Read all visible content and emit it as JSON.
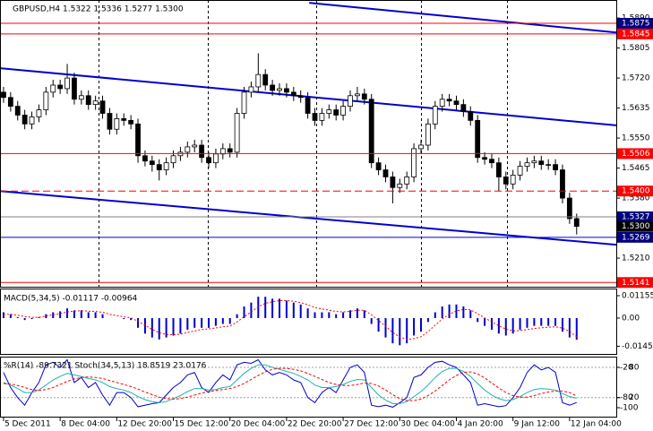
{
  "chart_data": [
    {
      "type": "candlestick",
      "title": "GBPUSD,H4 1.5322 1.5336 1.5277 1.5300",
      "categories": [
        "5 Dec 2011",
        null,
        null,
        null,
        null,
        null,
        null,
        null,
        "8 Dec 04:00",
        null,
        null,
        null,
        null,
        null,
        null,
        null,
        "12 Dec 20:00",
        null,
        null,
        null,
        null,
        null,
        null,
        null,
        "15 Dec 12:00",
        null,
        null,
        null,
        null,
        null,
        null,
        null,
        "20 Dec 04:00",
        null,
        null,
        null,
        null,
        null,
        null,
        null,
        "22 Dec 20:00",
        null,
        null,
        null,
        null,
        null,
        null,
        null,
        "27 Dec 12:00",
        null,
        null,
        null,
        null,
        null,
        null,
        null,
        "30 Dec 04:00",
        null,
        null,
        null,
        null,
        null,
        null,
        null,
        "4 Jan 20:00",
        null,
        null,
        null,
        null,
        null,
        null,
        null,
        "9 Jan 12:00",
        null,
        null,
        null,
        null,
        null,
        null,
        null,
        "12 Jan 04:00",
        null
      ],
      "open": [
        1.568,
        1.5665,
        1.564,
        1.5615,
        1.559,
        1.561,
        1.563,
        1.568,
        1.57,
        1.569,
        1.572,
        1.566,
        1.567,
        1.5645,
        1.5655,
        1.562,
        1.5575,
        1.5605,
        1.56,
        1.559,
        1.55,
        1.5485,
        1.5475,
        1.546,
        1.548,
        1.55,
        1.551,
        1.5525,
        1.553,
        1.5495,
        1.548,
        1.5505,
        1.552,
        1.551,
        1.562,
        1.568,
        1.5695,
        1.573,
        1.57,
        1.5685,
        1.569,
        1.568,
        1.567,
        1.5665,
        1.562,
        1.56,
        1.562,
        1.563,
        1.5615,
        1.564,
        1.567,
        1.5675,
        1.566,
        1.548,
        1.546,
        1.544,
        1.541,
        1.542,
        1.544,
        1.552,
        1.553,
        1.559,
        1.564,
        1.566,
        1.5655,
        1.5645,
        1.5625,
        1.56,
        1.5495,
        1.549,
        1.548,
        1.544,
        1.542,
        1.5445,
        1.547,
        1.548,
        1.5485,
        1.5475,
        1.5475,
        1.546,
        1.538,
        1.5322
      ],
      "high": [
        1.5695,
        1.568,
        1.5655,
        1.563,
        1.5625,
        1.5645,
        1.5695,
        1.5715,
        1.5715,
        1.576,
        1.5735,
        1.5685,
        1.5685,
        1.567,
        1.567,
        1.5635,
        1.562,
        1.562,
        1.5615,
        1.5605,
        1.5515,
        1.55,
        1.549,
        1.5495,
        1.5515,
        1.5525,
        1.554,
        1.5545,
        1.5545,
        1.551,
        1.552,
        1.5535,
        1.5535,
        1.5635,
        1.5695,
        1.571,
        1.579,
        1.5745,
        1.5715,
        1.5705,
        1.5705,
        1.5695,
        1.5685,
        1.568,
        1.5635,
        1.5635,
        1.5645,
        1.5645,
        1.5655,
        1.5685,
        1.5695,
        1.569,
        1.5675,
        1.5495,
        1.5475,
        1.5455,
        1.5435,
        1.5455,
        1.5535,
        1.5545,
        1.5605,
        1.5655,
        1.5675,
        1.5675,
        1.567,
        1.566,
        1.564,
        1.5615,
        1.551,
        1.5505,
        1.5495,
        1.5455,
        1.546,
        1.5485,
        1.5495,
        1.55,
        1.55,
        1.549,
        1.549,
        1.5475,
        1.5395,
        1.5336
      ],
      "low": [
        1.565,
        1.5625,
        1.56,
        1.5575,
        1.5575,
        1.5595,
        1.5615,
        1.5665,
        1.5675,
        1.5675,
        1.5645,
        1.5645,
        1.563,
        1.563,
        1.5605,
        1.556,
        1.556,
        1.5585,
        1.5575,
        1.548,
        1.547,
        1.5455,
        1.543,
        1.5445,
        1.5465,
        1.5485,
        1.5495,
        1.551,
        1.548,
        1.5465,
        1.5465,
        1.549,
        1.5495,
        1.5495,
        1.5605,
        1.5665,
        1.568,
        1.5685,
        1.567,
        1.567,
        1.5665,
        1.5655,
        1.565,
        1.5605,
        1.5585,
        1.5585,
        1.5605,
        1.56,
        1.56,
        1.5625,
        1.5655,
        1.5645,
        1.5465,
        1.5445,
        1.5425,
        1.5365,
        1.5395,
        1.5405,
        1.5425,
        1.5505,
        1.5515,
        1.5575,
        1.5625,
        1.564,
        1.563,
        1.561,
        1.5585,
        1.548,
        1.5475,
        1.5465,
        1.54,
        1.5405,
        1.5405,
        1.543,
        1.5455,
        1.5465,
        1.546,
        1.546,
        1.5445,
        1.5365,
        1.5307,
        1.5277
      ],
      "close": [
        1.5665,
        1.564,
        1.5615,
        1.559,
        1.561,
        1.563,
        1.568,
        1.57,
        1.569,
        1.572,
        1.566,
        1.567,
        1.5645,
        1.5655,
        1.562,
        1.5575,
        1.5605,
        1.56,
        1.559,
        1.55,
        1.5485,
        1.5475,
        1.546,
        1.548,
        1.55,
        1.551,
        1.5525,
        1.553,
        1.5495,
        1.548,
        1.5505,
        1.552,
        1.551,
        1.562,
        1.568,
        1.5695,
        1.573,
        1.57,
        1.5685,
        1.569,
        1.568,
        1.567,
        1.5665,
        1.562,
        1.56,
        1.562,
        1.563,
        1.5615,
        1.564,
        1.567,
        1.5675,
        1.566,
        1.548,
        1.546,
        1.544,
        1.541,
        1.542,
        1.544,
        1.552,
        1.553,
        1.559,
        1.564,
        1.566,
        1.5655,
        1.5645,
        1.5625,
        1.56,
        1.5495,
        1.549,
        1.548,
        1.544,
        1.542,
        1.5445,
        1.547,
        1.548,
        1.5485,
        1.5475,
        1.5475,
        1.546,
        1.538,
        1.5322,
        1.53
      ],
      "color": "#000000",
      "xlim": [
        -0.5,
        86.6
      ],
      "ylim": [
        1.5129,
        1.5941
      ],
      "yticks": [
        {
          "value": 1.589,
          "label": "1.5890"
        },
        1.5805,
        {
          "value": 1.572,
          "label": "1.5720"
        },
        1.5635,
        {
          "value": 1.555,
          "label": "1.5550"
        },
        1.5465,
        {
          "value": 1.538,
          "label": "1.5380"
        },
        {
          "value": 1.521,
          "label": "1.5210"
        }
      ],
      "levels": [
        {
          "value": 1.5875,
          "label": "1.5875",
          "color": "#ff0000",
          "label_color": "#000080",
          "line": true,
          "dash": false
        },
        {
          "value": 1.5845,
          "label": "1.5845",
          "color": "#ff0000",
          "label_color": "#ff0000",
          "line": true,
          "dash": false
        },
        {
          "value": 1.5506,
          "label": "1.5506",
          "color": "#ff0000",
          "label_color": "#ff0000",
          "line": true,
          "dash": false
        },
        {
          "value": 1.54,
          "label": "1.5400",
          "color": "#ff0000",
          "label_color": "#ff0000",
          "line": true,
          "dash": true
        },
        {
          "value": 1.5327,
          "label": "1.5327",
          "color": "#808080",
          "label_color": "#000080",
          "line": true,
          "dash": false
        },
        {
          "value": 1.53,
          "label": "1.5300",
          "color": "#000000",
          "label_color": "#000000",
          "line": false,
          "dash": false
        },
        {
          "value": 1.5269,
          "label": "1.5269",
          "color": "#0000cd",
          "label_color": "#000080",
          "line": true,
          "dash": false
        },
        {
          "value": 1.5141,
          "label": "1.5141",
          "color": "#ff0000",
          "label_color": "#ff0000",
          "line": true,
          "dash": false
        }
      ],
      "trendlines": [
        {
          "x": [
            43.2,
            86.6
          ],
          "values": [
            1.5933,
            1.5849
          ],
          "color": "#0000cd"
        },
        {
          "x": [
            -0.5,
            86.6
          ],
          "values": [
            1.5748,
            1.5586
          ],
          "color": "#0000cd"
        },
        {
          "x": [
            -0.5,
            86.6
          ],
          "values": [
            1.54,
            1.5248
          ],
          "color": "#0000cd"
        }
      ]
    },
    {
      "type": "bar",
      "title": "MACD(5,34,5) -0.01117 -0.00964",
      "ylim": [
        -0.01848,
        0.01524
      ],
      "yticks": [
        0.01155,
        {
          "value": 0,
          "label": "0.00"
        },
        -0.01451
      ],
      "series": [
        {
          "kind": "bar",
          "color": "#0000cd",
          "dash": false,
          "values": [
            0.003,
            0.002,
            0.0005,
            -0.001,
            -0.0005,
            0.0005,
            0.002,
            0.003,
            0.0035,
            0.005,
            0.004,
            0.004,
            0.003,
            0.003,
            0.002,
            0.0,
            0.0,
            -0.0005,
            -0.001,
            -0.005,
            -0.008,
            -0.01,
            -0.011,
            -0.01,
            -0.009,
            -0.008,
            -0.006,
            -0.005,
            -0.005,
            -0.005,
            -0.004,
            -0.003,
            -0.003,
            0.002,
            0.006,
            0.008,
            0.011,
            0.011,
            0.01,
            0.01,
            0.009,
            0.008,
            0.007,
            0.005,
            0.003,
            0.003,
            0.003,
            0.002,
            0.003,
            0.004,
            0.005,
            0.004,
            -0.003,
            -0.007,
            -0.01,
            -0.013,
            -0.014,
            -0.013,
            -0.009,
            -0.007,
            -0.002,
            0.003,
            0.006,
            0.007,
            0.007,
            0.006,
            0.004,
            -0.002,
            -0.004,
            -0.006,
            -0.008,
            -0.009,
            -0.008,
            -0.006,
            -0.005,
            -0.004,
            -0.004,
            -0.004,
            -0.004,
            -0.007,
            -0.01,
            -0.01117
          ]
        },
        {
          "kind": "line",
          "color": "#ff0000",
          "dash": true,
          "values": [
            0.002,
            0.002,
            0.0015,
            0.0008,
            0.0004,
            0.0004,
            0.001,
            0.0017,
            0.0023,
            0.0032,
            0.0036,
            0.0038,
            0.0036,
            0.0034,
            0.003,
            0.002,
            0.0013,
            0.0007,
            0.0001,
            -0.0016,
            -0.0037,
            -0.0058,
            -0.0076,
            -0.0084,
            -0.0086,
            -0.0083,
            -0.0074,
            -0.0066,
            -0.0059,
            -0.0056,
            -0.0051,
            -0.0045,
            -0.0041,
            -0.002,
            0.0007,
            0.0032,
            0.0058,
            0.0076,
            0.0084,
            0.009,
            0.009,
            0.0087,
            0.008,
            0.0069,
            0.0055,
            0.0047,
            0.0041,
            0.0034,
            0.0032,
            0.0035,
            0.004,
            0.004,
            0.0017,
            -0.0012,
            -0.0042,
            -0.0074,
            -0.0097,
            -0.011,
            -0.0106,
            -0.0096,
            -0.007,
            -0.0037,
            -0.0005,
            0.002,
            0.0037,
            0.0045,
            0.0043,
            0.0022,
            0.0001,
            -0.0019,
            -0.004,
            -0.0057,
            -0.0066,
            -0.0064,
            -0.0059,
            -0.0054,
            -0.005,
            -0.0047,
            -0.0045,
            -0.0052,
            -0.0069,
            -0.00964
          ]
        }
      ]
    },
    {
      "type": "line",
      "title": "%R(14) -89.7321  Stoch(34,5,13) 18.8519 23.0176",
      "ylim": [
        -17.8,
        101.3
      ],
      "yticks": [
        80,
        20
      ],
      "y2lim": [
        -117.8,
        1.3
      ],
      "y2ticks": [
        -20,
        -80,
        -100
      ],
      "grid": true,
      "series": [
        {
          "axis": "y2",
          "color": "#0000cd",
          "dash": false,
          "values": [
            -30,
            -60,
            -80,
            -95,
            -70,
            -50,
            -15,
            -10,
            -20,
            -5,
            -50,
            -40,
            -60,
            -50,
            -75,
            -95,
            -70,
            -70,
            -80,
            -98,
            -95,
            -92,
            -90,
            -75,
            -60,
            -50,
            -35,
            -30,
            -60,
            -70,
            -50,
            -35,
            -45,
            -15,
            -10,
            -12,
            -5,
            -25,
            -35,
            -30,
            -35,
            -45,
            -50,
            -80,
            -90,
            -70,
            -60,
            -70,
            -45,
            -20,
            -15,
            -30,
            -95,
            -98,
            -95,
            -99,
            -90,
            -80,
            -40,
            -35,
            -20,
            -10,
            -8,
            -15,
            -20,
            -35,
            -50,
            -95,
            -92,
            -95,
            -98,
            -96,
            -80,
            -60,
            -30,
            -15,
            -25,
            -20,
            -30,
            -90,
            -95,
            -89.7321
          ]
        },
        {
          "axis": "y",
          "color": "#20b2aa",
          "dash": false,
          "values": [
            50,
            45,
            38,
            30,
            30,
            35,
            45,
            55,
            62,
            68,
            65,
            62,
            58,
            55,
            50,
            42,
            38,
            35,
            30,
            22,
            16,
            12,
            10,
            12,
            18,
            24,
            32,
            38,
            38,
            35,
            36,
            40,
            42,
            55,
            68,
            78,
            85,
            85,
            80,
            76,
            72,
            68,
            62,
            55,
            45,
            40,
            40,
            42,
            46,
            52,
            56,
            55,
            40,
            25,
            15,
            8,
            8,
            12,
            22,
            32,
            45,
            60,
            72,
            78,
            78,
            72,
            62,
            48,
            35,
            25,
            18,
            14,
            16,
            22,
            30,
            36,
            38,
            37,
            35,
            28,
            22,
            18.8519
          ]
        },
        {
          "axis": "y",
          "color": "#ff0000",
          "dash": true,
          "values": [
            48,
            47,
            44,
            40,
            36,
            34,
            36,
            40,
            46,
            52,
            57,
            60,
            61,
            60,
            58,
            54,
            50,
            46,
            42,
            37,
            31,
            26,
            21,
            18,
            17,
            18,
            21,
            25,
            29,
            32,
            34,
            36,
            38,
            42,
            48,
            56,
            64,
            71,
            76,
            78,
            78,
            76,
            73,
            68,
            62,
            56,
            50,
            46,
            44,
            44,
            46,
            49,
            48,
            43,
            35,
            26,
            18,
            14,
            14,
            17,
            24,
            33,
            44,
            55,
            64,
            70,
            71,
            67,
            59,
            49,
            39,
            30,
            24,
            21,
            21,
            24,
            28,
            31,
            33,
            33,
            30,
            23.0176
          ]
        }
      ]
    }
  ]
}
